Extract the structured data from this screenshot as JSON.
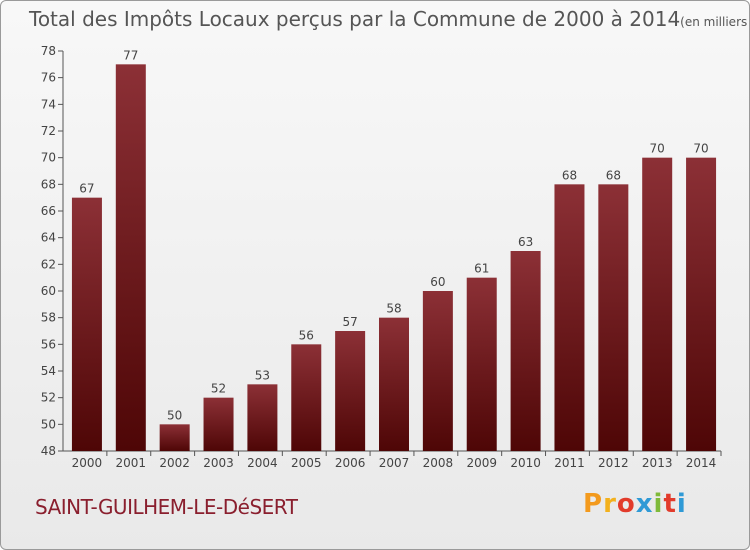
{
  "title": "Total des Impôts Locaux perçus par la Commune de 2000 à 2014",
  "title_unit": "(en milliers d'€)",
  "commune": "SAINT-GUILHEM-LE-DéSERT",
  "logo": {
    "text": "Proxiti",
    "letters": [
      "P",
      "r",
      "o",
      "x",
      "i",
      "t",
      "i"
    ],
    "colors": [
      "#f39a1d",
      "#f3b11d",
      "#e23b2b",
      "#2f9ad6",
      "#7fba3a",
      "#e23b2b",
      "#2f9ad6"
    ]
  },
  "colors": {
    "bar_top": "#8c3036",
    "bar_bottom": "#4e0606",
    "label": "#444444"
  },
  "chart_data": {
    "type": "bar",
    "title": "Total des Impôts Locaux perçus par la Commune de 2000 à 2014",
    "xlabel": "",
    "ylabel": "en milliers d'€",
    "categories": [
      "2000",
      "2001",
      "2002",
      "2003",
      "2004",
      "2005",
      "2006",
      "2007",
      "2008",
      "2009",
      "2010",
      "2011",
      "2012",
      "2013",
      "2014"
    ],
    "values": [
      67,
      77,
      50,
      52,
      53,
      56,
      57,
      58,
      60,
      61,
      63,
      68,
      68,
      70,
      70
    ],
    "ylim": [
      48,
      78
    ],
    "yticks": [
      48,
      50,
      52,
      54,
      56,
      58,
      60,
      62,
      64,
      66,
      68,
      70,
      72,
      74,
      76,
      78
    ],
    "grid": false
  }
}
